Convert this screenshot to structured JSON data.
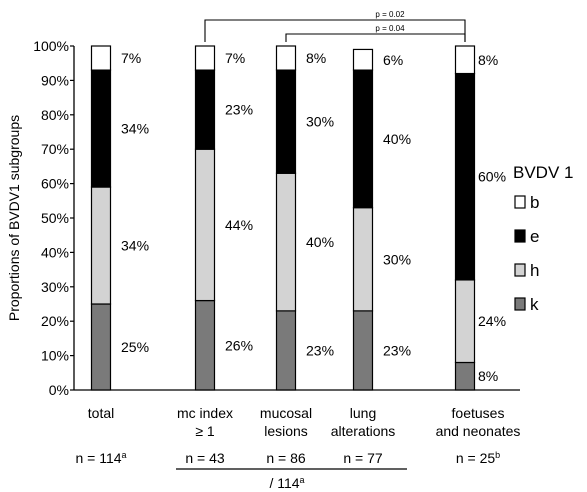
{
  "chart_data": {
    "type": "bar",
    "stacked": true,
    "ylabel": "Proportions of BVDV1 subgroups",
    "ylim": [
      0,
      100
    ],
    "yticks": [
      "0%",
      "10%",
      "20%",
      "30%",
      "40%",
      "50%",
      "60%",
      "70%",
      "80%",
      "90%",
      "100%"
    ],
    "categories": [
      {
        "line1": "total",
        "line2": "",
        "n": "n = 114",
        "n_sup": "a"
      },
      {
        "line1": "mc index",
        "line2": "≥ 1",
        "n": "n = 43",
        "n_sup": ""
      },
      {
        "line1": "mucosal",
        "line2": "lesions",
        "n": "n = 86",
        "n_sup": ""
      },
      {
        "line1": "lung",
        "line2": "alterations",
        "n": "n = 77",
        "n_sup": ""
      },
      {
        "line1": "foetuses",
        "line2": "and neonates",
        "n": "n = 25",
        "n_sup": "b"
      }
    ],
    "group_label": {
      "text": "/ 114",
      "sup": "a"
    },
    "legend": {
      "title": "BVDV 1",
      "position": "right",
      "items": [
        "b",
        "e",
        "h",
        "k"
      ]
    },
    "series": [
      {
        "name": "k",
        "color": "#7a7a7a",
        "values": [
          25,
          26,
          23,
          23,
          8
        ],
        "labels": [
          "25%",
          "26%",
          "23%",
          "23%",
          "8%"
        ]
      },
      {
        "name": "h",
        "color": "#d3d3d3",
        "values": [
          34,
          44,
          40,
          30,
          24
        ],
        "labels": [
          "34%",
          "44%",
          "40%",
          "30%",
          "24%"
        ]
      },
      {
        "name": "e",
        "color": "#000000",
        "values": [
          34,
          23,
          30,
          40,
          60
        ],
        "labels": [
          "34%",
          "23%",
          "30%",
          "40%",
          "60%"
        ]
      },
      {
        "name": "b",
        "color": "#ffffff",
        "values": [
          7,
          7,
          8,
          6,
          8
        ],
        "labels": [
          "7%",
          "7%",
          "8%",
          "6%",
          "8%"
        ]
      }
    ],
    "significance": [
      {
        "label": "p = 0.02",
        "from": 1,
        "to": 4
      },
      {
        "label": "p = 0.04",
        "from": 2,
        "to": 4
      }
    ],
    "grid": false
  }
}
